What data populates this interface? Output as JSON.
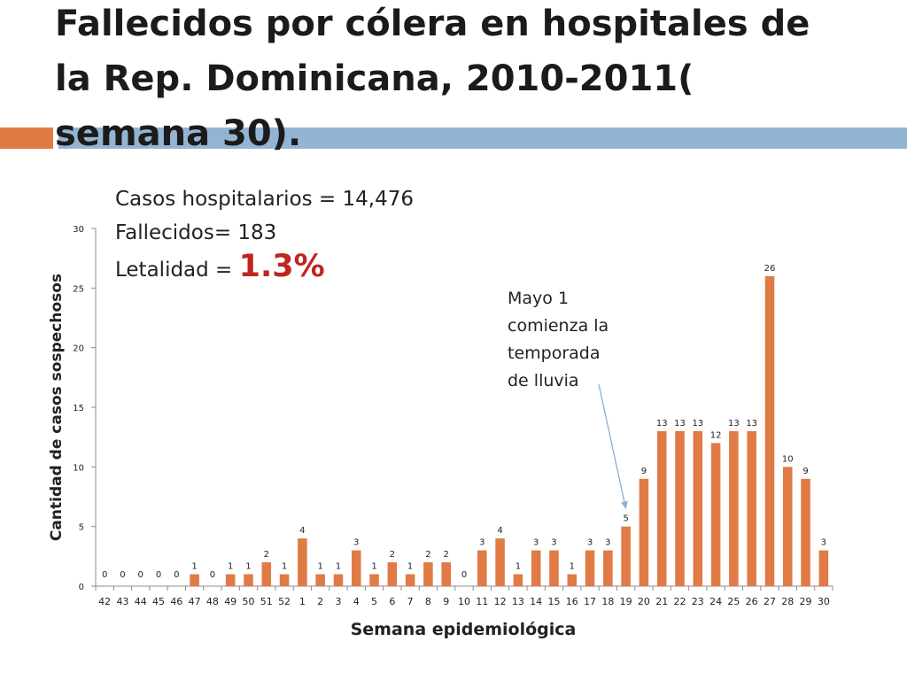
{
  "header": {
    "title": "Fallecidos por cólera en hospitales de la Rep. Dominicana, 2010-2011( semana 30)."
  },
  "stats": {
    "cases_label": "Casos hospitalarios = 14,476",
    "deaths_label": "Fallecidos= 183",
    "lethality_label": "Letalidad = ",
    "lethality_value": "1.3%"
  },
  "annotation": {
    "lines": [
      "Mayo 1",
      "comienza la",
      "temporada",
      "de lluvia"
    ]
  },
  "colors": {
    "bar": "#e07b45",
    "accent_orange": "#e07b45",
    "accent_blue": "#93b4d2",
    "arrow": "#8aaed0"
  },
  "chart_data": {
    "type": "bar",
    "title": "",
    "xlabel": "Semana epidemiológica",
    "ylabel": "Cantidad de casos sospechosos",
    "ylim": [
      0,
      30
    ],
    "yticks": [
      0,
      5,
      10,
      15,
      20,
      25,
      30
    ],
    "grid": false,
    "categories": [
      "42",
      "43",
      "44",
      "45",
      "46",
      "47",
      "48",
      "49",
      "50",
      "51",
      "52",
      "1",
      "2",
      "3",
      "4",
      "5",
      "6",
      "7",
      "8",
      "9",
      "10",
      "11",
      "12",
      "13",
      "14",
      "15",
      "16",
      "17",
      "18",
      "19",
      "20",
      "21",
      "22",
      "23",
      "24",
      "25",
      "26",
      "27",
      "28",
      "29",
      "30"
    ],
    "values": [
      0,
      0,
      0,
      0,
      0,
      1,
      0,
      1,
      1,
      2,
      1,
      4,
      1,
      1,
      3,
      1,
      2,
      1,
      2,
      2,
      0,
      3,
      4,
      1,
      3,
      3,
      1,
      3,
      3,
      5,
      9,
      13,
      13,
      13,
      12,
      13,
      13,
      26,
      10,
      9,
      3
    ],
    "data_labels": true,
    "annotation": {
      "text": "Mayo 1 comienza la temporada de lluvia",
      "points_to_category": "19"
    }
  }
}
